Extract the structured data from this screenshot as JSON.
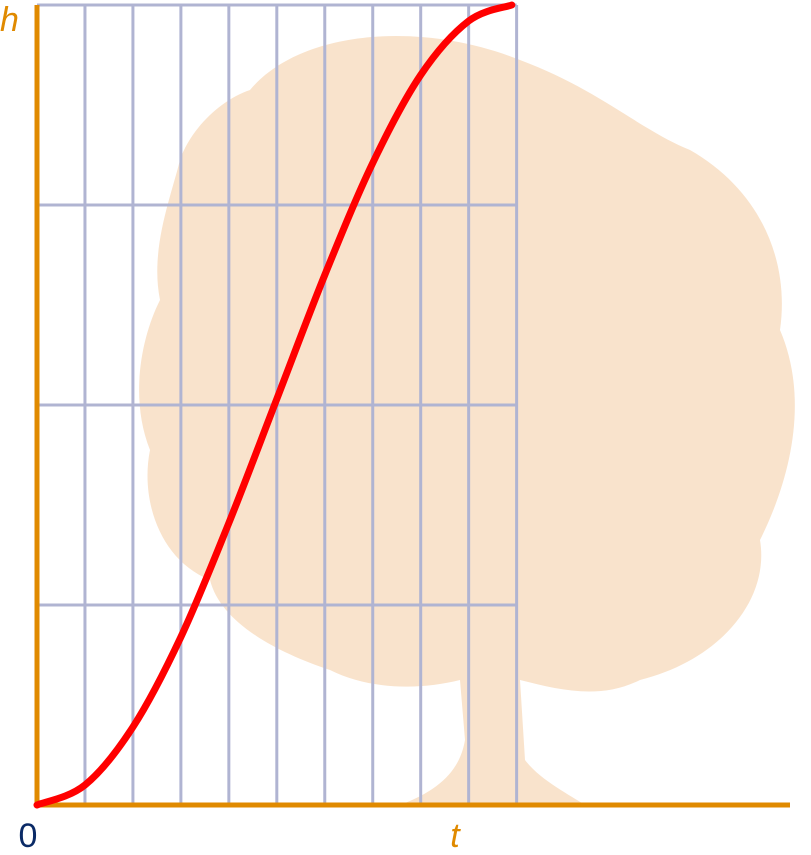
{
  "chart_data": {
    "type": "line",
    "x_label": "t",
    "y_label": "h",
    "x": [
      0,
      1,
      2,
      3,
      4,
      5,
      6,
      7,
      8,
      9,
      9.9
    ],
    "series": [
      {
        "color": "#ff0000",
        "values": [
          0,
          0.1,
          0.39,
          0.84,
          1.41,
          2.03,
          2.65,
          3.21,
          3.65,
          3.92,
          4
        ]
      }
    ],
    "xlim": [
      0,
      15.7
    ],
    "ylim": [
      0,
      4
    ],
    "xticks": [
      0,
      1,
      2,
      3,
      4,
      5,
      6,
      7,
      8,
      9,
      10
    ],
    "yticks": [
      0,
      1,
      2,
      3,
      4
    ],
    "grid": true,
    "grid_color": "#b0b4d2",
    "axis_color": "#e08a00"
  }
}
